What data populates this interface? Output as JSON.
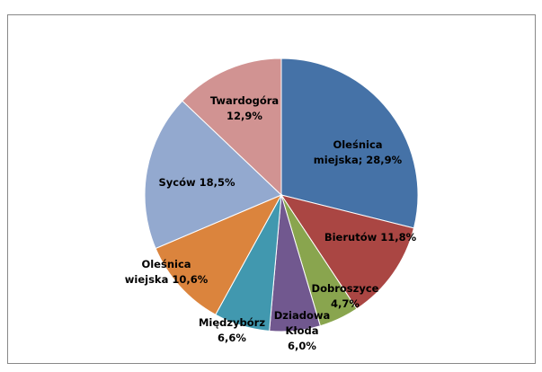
{
  "chart_data": {
    "type": "pie",
    "values": [
      28.9,
      11.8,
      4.7,
      6.0,
      6.6,
      10.6,
      18.5,
      12.9
    ],
    "value_labels": [
      "Oleśnica\nmiejska; 28,9%",
      "Bierutów 11,8%",
      "Dobroszyce\n4,7%",
      "Dziadowa\nKłoda\n6,0%",
      "Międzybórz\n6,6%",
      "Oleśnica\nwiejska 10,6%",
      "Syców 18,5%",
      "Twardogóra\n12,9%"
    ],
    "colors": [
      "#4572a7",
      "#aa4643",
      "#89a54e",
      "#71588f",
      "#4198af",
      "#db843d",
      "#93a9cf",
      "#d19392"
    ]
  }
}
